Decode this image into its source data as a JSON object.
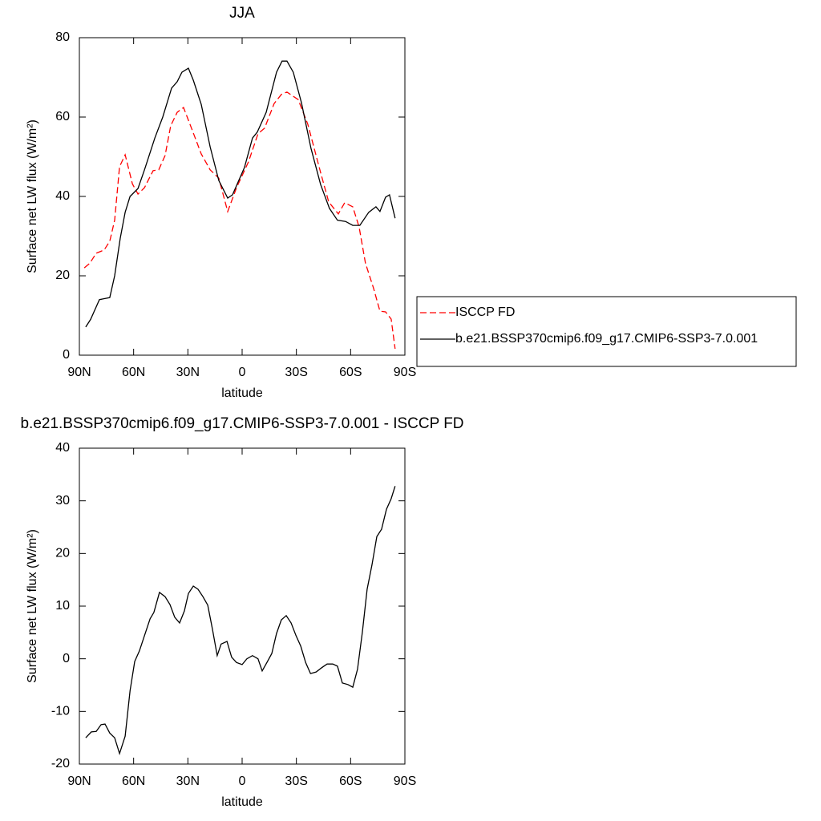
{
  "chart_data": [
    {
      "type": "line",
      "title": "JJA",
      "x_label": "latitude",
      "y_label": "Surface net LW flux (W/m²)",
      "xlim": [
        90,
        -90
      ],
      "xticks": [
        {
          "value": 90,
          "label": "90N"
        },
        {
          "value": 60,
          "label": "60N"
        },
        {
          "value": 30,
          "label": "30N"
        },
        0,
        {
          "value": -30,
          "label": "30S"
        },
        {
          "value": -60,
          "label": "60S"
        },
        {
          "value": -90,
          "label": "90S"
        }
      ],
      "ylim": [
        0,
        80
      ],
      "yticks": [
        0,
        20,
        40,
        60,
        80
      ],
      "legend": "right",
      "series": [
        {
          "name": "ISCCP FD",
          "color": "#ff0000",
          "dashed": true,
          "x": [
            87.3,
            84.2,
            80.7,
            76.3,
            73.2,
            70.5,
            67.8,
            64.7,
            60.7,
            57.6,
            54,
            49.2,
            46.1,
            42.6,
            39.5,
            35.9,
            32.4,
            27,
            22.6,
            17.7,
            12.9,
            8,
            3.1,
            -3.5,
            -8.8,
            -12.4,
            -17.7,
            -21.7,
            -24.8,
            -31,
            -36.3,
            -43.4,
            -47.9,
            -53.2,
            -56.7,
            -61.2,
            -64.7,
            -68.2,
            -72.7,
            -76.2,
            -79.3,
            -82.4,
            -84.6
          ],
          "values": [
            22,
            23.2,
            25.7,
            26.5,
            28.7,
            34,
            47.5,
            50.5,
            43.2,
            40.6,
            42.2,
            46.5,
            46.7,
            50.3,
            57.8,
            61.2,
            62.4,
            56,
            50.7,
            46.7,
            44.6,
            36.2,
            42.2,
            48.7,
            55.8,
            57.2,
            63.4,
            65.7,
            66.3,
            64.4,
            58.2,
            46,
            38.6,
            35.6,
            38.4,
            37.4,
            32.3,
            23.2,
            16.8,
            11.1,
            10.9,
            9.1,
            1.6
          ]
        },
        {
          "name": "b.e21.BSSP370cmip6.f09_g17.CMIP6-SSP3-7.0.001",
          "color": "#000000",
          "dashed": false,
          "x": [
            86.5,
            83.8,
            78.9,
            73.2,
            70.5,
            67.4,
            64.7,
            62,
            57.6,
            54,
            48.3,
            43.9,
            39,
            35.9,
            33.3,
            29.7,
            27,
            22.6,
            17.7,
            12.9,
            8,
            5.3,
            -1.3,
            -5.7,
            -8.4,
            -13.3,
            -19,
            -22.1,
            -24.8,
            -28.3,
            -32.8,
            -38.1,
            -43.4,
            -48.3,
            -52.7,
            -57.2,
            -61.2,
            -65.1,
            -70,
            -74,
            -76.2,
            -79.3,
            -81.5,
            -84.6
          ],
          "values": [
            7.1,
            9,
            14,
            14.5,
            20,
            29.5,
            36,
            40,
            42,
            46.7,
            54.7,
            60,
            67.3,
            68.9,
            71.3,
            72.3,
            69.3,
            63.2,
            52.5,
            44,
            39.6,
            40.4,
            47.3,
            54.7,
            56.2,
            61.2,
            71.3,
            74.1,
            74.1,
            71.3,
            63.6,
            52.1,
            43,
            37,
            34,
            33.7,
            32.7,
            32.7,
            36,
            37.4,
            36.2,
            39.8,
            40.4,
            34.5
          ]
        }
      ]
    },
    {
      "type": "line",
      "title": "b.e21.BSSP370cmip6.f09_g17.CMIP6-SSP3-7.0.001 - ISCCP FD",
      "x_label": "latitude",
      "y_label": "Surface net LW flux (W/m²)",
      "xlim": [
        90,
        -90
      ],
      "xticks": [
        {
          "value": 90,
          "label": "90N"
        },
        {
          "value": 60,
          "label": "60N"
        },
        {
          "value": 30,
          "label": "30N"
        },
        0,
        {
          "value": -30,
          "label": "30S"
        },
        {
          "value": -60,
          "label": "60S"
        },
        {
          "value": -90,
          "label": "90S"
        }
      ],
      "ylim": [
        -20,
        40
      ],
      "yticks": [
        -20,
        -10,
        0,
        10,
        20,
        30,
        40
      ],
      "color": "#000000",
      "x": [
        86.5,
        83.4,
        80.7,
        78,
        75.8,
        73.2,
        70.5,
        67.8,
        64.7,
        62,
        59.4,
        56.8,
        54,
        50.9,
        48.8,
        45.7,
        42.6,
        39.9,
        37.3,
        34.6,
        31.9,
        29.7,
        27,
        24.4,
        21.7,
        19,
        16.4,
        13.8,
        11.6,
        8.4,
        5.8,
        3.1,
        0,
        -2.6,
        -5.7,
        -8.8,
        -11.1,
        -13.7,
        -16.4,
        -19,
        -21.7,
        -24.4,
        -27.1,
        -29.8,
        -32.4,
        -35.1,
        -37.8,
        -40.9,
        -44,
        -47,
        -50.1,
        -52.7,
        -55.4,
        -58.5,
        -61.2,
        -63.8,
        -66.5,
        -69.1,
        -71.8,
        -74.5,
        -77.1,
        -79.8,
        -82.4,
        -84.6
      ],
      "values": [
        -15,
        -13.9,
        -13.8,
        -12.5,
        -12.4,
        -14.1,
        -15,
        -18,
        -14.7,
        -6.1,
        -0.5,
        1.5,
        4.4,
        7.6,
        8.8,
        12.6,
        11.8,
        10.3,
        7.9,
        6.8,
        9.1,
        12.4,
        13.8,
        13.2,
        11.8,
        10.2,
        5.6,
        0.6,
        2.8,
        3.3,
        0.3,
        -0.7,
        -1.1,
        0,
        0.6,
        0,
        -2.3,
        -0.7,
        1,
        4.8,
        7.4,
        8.2,
        6.8,
        4.4,
        2.4,
        -0.7,
        -2.8,
        -2.5,
        -1.7,
        -1,
        -1,
        -1.4,
        -4.6,
        -4.9,
        -5.4,
        -2,
        5.1,
        13.2,
        17.8,
        23.2,
        24.6,
        28.4,
        30.4,
        32.8
      ]
    }
  ]
}
